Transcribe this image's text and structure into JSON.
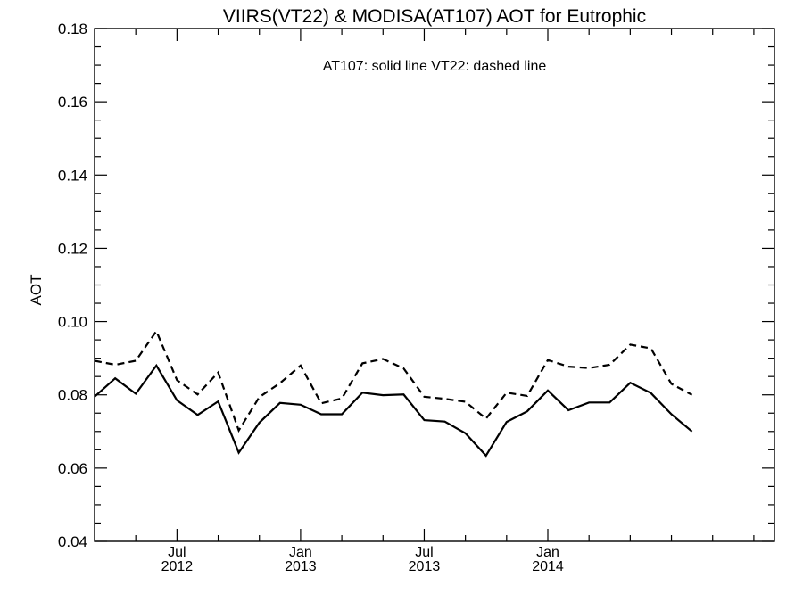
{
  "chart_data": {
    "type": "line",
    "title": "VIIRS(VT22) & MODISA(AT107)  AOT for Eutrophic",
    "annotation": "AT107: solid line   VT22: dashed line",
    "ylabel": "AOT",
    "xlabel": "",
    "ylim": [
      0.04,
      0.18
    ],
    "yticks": [
      "0.04",
      "0.06",
      "0.08",
      "0.10",
      "0.12",
      "0.14",
      "0.16",
      "0.18"
    ],
    "xlim": [
      "2012-03",
      "2014-12"
    ],
    "xtick_months": [
      "2012-07",
      "2013-01",
      "2013-07",
      "2014-01"
    ],
    "xtick_labels": [
      {
        "month": "Jul",
        "year": "2012"
      },
      {
        "month": "Jan",
        "year": "2013"
      },
      {
        "month": "Jul",
        "year": "2013"
      },
      {
        "month": "Jan",
        "year": "2014"
      }
    ],
    "x": [
      "2012-03",
      "2012-04",
      "2012-05",
      "2012-06",
      "2012-07",
      "2012-08",
      "2012-09",
      "2012-10",
      "2012-11",
      "2012-12",
      "2013-01",
      "2013-02",
      "2013-03",
      "2013-04",
      "2013-05",
      "2013-06",
      "2013-07",
      "2013-08",
      "2013-09",
      "2013-10",
      "2013-11",
      "2013-12",
      "2014-01",
      "2014-02",
      "2014-03",
      "2014-04",
      "2014-05",
      "2014-06",
      "2014-07",
      "2014-08"
    ],
    "series": [
      {
        "name": "AT107",
        "style": "solid",
        "values": [
          0.0795,
          0.0845,
          0.0803,
          0.088,
          0.0785,
          0.0745,
          0.0782,
          0.0642,
          0.0724,
          0.0778,
          0.0773,
          0.0747,
          0.0747,
          0.0806,
          0.0799,
          0.0801,
          0.0731,
          0.0727,
          0.0695,
          0.0634,
          0.0726,
          0.0755,
          0.0812,
          0.0758,
          0.0779,
          0.0779,
          0.0833,
          0.0805,
          0.0747,
          0.07
        ]
      },
      {
        "name": "VT22",
        "style": "dashed",
        "values": [
          0.0893,
          0.0882,
          0.0893,
          0.0974,
          0.084,
          0.0801,
          0.0861,
          0.0703,
          0.0794,
          0.0832,
          0.088,
          0.0777,
          0.079,
          0.0886,
          0.0898,
          0.0872,
          0.0795,
          0.0789,
          0.0781,
          0.0735,
          0.0806,
          0.0797,
          0.0895,
          0.0877,
          0.0873,
          0.0882,
          0.0937,
          0.0927,
          0.083,
          0.08
        ]
      }
    ],
    "grid": false,
    "legend": "none"
  }
}
